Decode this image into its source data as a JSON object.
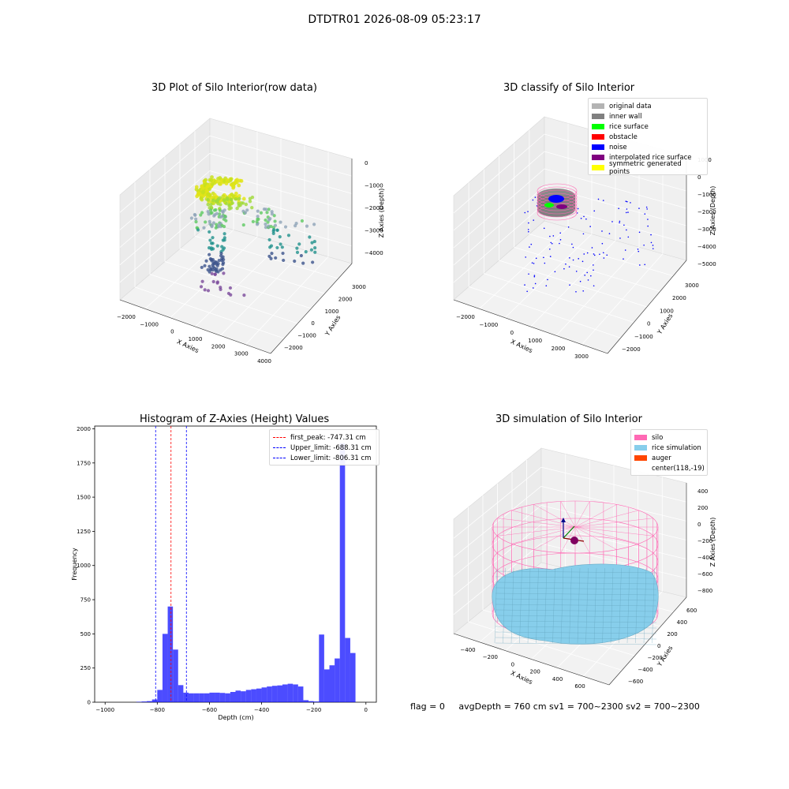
{
  "figure": {
    "suptitle": "DTDTR01 2026-08-09 05:23:17",
    "footer": {
      "flag": "flag = 0",
      "stats": "avgDepth = 760 cm  sv1 = 700~2300  sv2 = 700~2300"
    }
  },
  "chart_data": [
    {
      "type": "scatter",
      "projection": "3d",
      "title": "3D Plot of Silo Interior(row data)",
      "xlabel": "X Axies",
      "ylabel": "Y Axies",
      "zlabel": "Z Axies (Depth)",
      "xticks": [
        "-2000",
        "-1000",
        "0",
        "1000",
        "2000",
        "3000",
        "4000"
      ],
      "yticks": [
        "-2000",
        "-1000",
        "0",
        "1000",
        "2000",
        "3000"
      ],
      "zticks": [
        "-4000",
        "-3000",
        "-2000",
        "-1000",
        "0"
      ],
      "colormap": "viridis",
      "points_visible": "~600"
    },
    {
      "type": "scatter",
      "projection": "3d",
      "title": "3D classify of Silo Interior",
      "xlabel": "X Axies",
      "ylabel": "Y Axies",
      "zlabel": "Z Axies (Depth)",
      "xticks": [
        "-2000",
        "-1000",
        "0",
        "1000",
        "2000",
        "3000"
      ],
      "yticks": [
        "-2000",
        "-1000",
        "0",
        "1000",
        "2000",
        "3000"
      ],
      "zticks": [
        "-5000",
        "-4000",
        "-3000",
        "-2000",
        "-1000",
        "0",
        "1000"
      ],
      "legend": [
        {
          "label": "original data",
          "color": "#b3b3b3"
        },
        {
          "label": "inner wall",
          "color": "#808080"
        },
        {
          "label": "rice surface",
          "color": "#00ff00"
        },
        {
          "label": "obstacle",
          "color": "#ff0000"
        },
        {
          "label": "noise",
          "color": "#0000ff"
        },
        {
          "label": "interpolated rice surface",
          "color": "#800080"
        },
        {
          "label": "symmetric generated points",
          "color": "#ffff00"
        }
      ],
      "legend_position": "top-right"
    },
    {
      "type": "bar",
      "title": "Histogram of Z-Axies (Height) Values",
      "xlabel": "Depth (cm)",
      "ylabel": "Frequency",
      "xlim": [
        -1040,
        40
      ],
      "ylim": [
        0,
        2020
      ],
      "xticks": [
        -1000,
        -800,
        -600,
        -400,
        -200,
        0
      ],
      "yticks": [
        0,
        250,
        500,
        750,
        1000,
        1250,
        1500,
        1750,
        2000
      ],
      "bin_width": 20,
      "bar_color": "#0000ff",
      "bins": [
        {
          "x": -860,
          "y": 3
        },
        {
          "x": -840,
          "y": 5
        },
        {
          "x": -820,
          "y": 8
        },
        {
          "x": -800,
          "y": 20
        },
        {
          "x": -780,
          "y": 90
        },
        {
          "x": -760,
          "y": 500
        },
        {
          "x": -740,
          "y": 700
        },
        {
          "x": -720,
          "y": 385
        },
        {
          "x": -700,
          "y": 125
        },
        {
          "x": -680,
          "y": 70
        },
        {
          "x": -660,
          "y": 65
        },
        {
          "x": -640,
          "y": 65
        },
        {
          "x": -620,
          "y": 65
        },
        {
          "x": -600,
          "y": 65
        },
        {
          "x": -580,
          "y": 70
        },
        {
          "x": -560,
          "y": 70
        },
        {
          "x": -540,
          "y": 68
        },
        {
          "x": -520,
          "y": 65
        },
        {
          "x": -500,
          "y": 75
        },
        {
          "x": -480,
          "y": 85
        },
        {
          "x": -460,
          "y": 80
        },
        {
          "x": -440,
          "y": 90
        },
        {
          "x": -420,
          "y": 95
        },
        {
          "x": -400,
          "y": 100
        },
        {
          "x": -380,
          "y": 108
        },
        {
          "x": -360,
          "y": 115
        },
        {
          "x": -340,
          "y": 120
        },
        {
          "x": -320,
          "y": 123
        },
        {
          "x": -300,
          "y": 130
        },
        {
          "x": -280,
          "y": 135
        },
        {
          "x": -260,
          "y": 130
        },
        {
          "x": -240,
          "y": 115
        },
        {
          "x": -220,
          "y": 15
        },
        {
          "x": -200,
          "y": 8
        },
        {
          "x": -180,
          "y": 5
        },
        {
          "x": -160,
          "y": 495
        },
        {
          "x": -140,
          "y": 240
        },
        {
          "x": -120,
          "y": 270
        },
        {
          "x": -100,
          "y": 320
        },
        {
          "x": -80,
          "y": 1895
        },
        {
          "x": -60,
          "y": 470
        },
        {
          "x": -40,
          "y": 360
        }
      ],
      "vlines": [
        {
          "label": "first_peak: -747.31 cm",
          "x": -747.31,
          "color": "#ff0000"
        },
        {
          "label": "Upper_limit: -688.31 cm",
          "x": -688.31,
          "color": "#0000ff"
        },
        {
          "label": "Lower_limit: -806.31 cm",
          "x": -806.31,
          "color": "#0000ff"
        }
      ],
      "legend_position": "top-right"
    },
    {
      "type": "surface",
      "projection": "3d",
      "title": "3D simulation of Silo Interior",
      "xlabel": "X Axies",
      "ylabel": "Y Axies",
      "zlabel": "Z Axies (Depth)",
      "xticks": [
        "-400",
        "-200",
        "0",
        "200",
        "400",
        "600"
      ],
      "yticks": [
        "-600",
        "-400",
        "-200",
        "0",
        "200",
        "400",
        "600"
      ],
      "zticks": [
        "-800",
        "-600",
        "-400",
        "-200",
        "0",
        "200",
        "400"
      ],
      "legend": [
        {
          "label": "silo",
          "color": "#ff69b4"
        },
        {
          "label": "rice simulation",
          "color": "#87ceeb"
        },
        {
          "label": "auger",
          "color": "#ff4500"
        },
        {
          "label": "center(118,-19)",
          "color": ""
        }
      ],
      "legend_position": "top-right"
    }
  ]
}
